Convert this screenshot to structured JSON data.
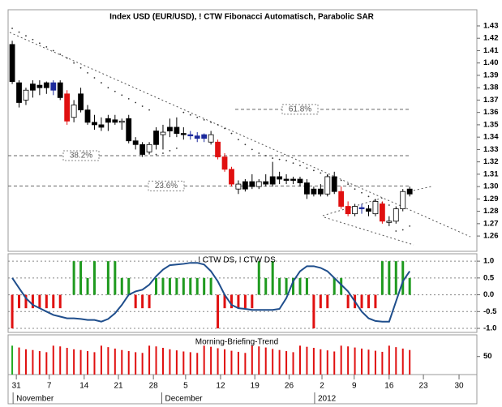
{
  "chart_data": [
    {
      "type": "candlestick",
      "title": "Index USD (EUR/USD), ! CTW Fibonacci Automatisch, Parabolic SAR",
      "open": [
        1.415,
        1.384,
        1.37,
        1.378,
        1.382,
        1.38,
        1.378,
        1.384,
        1.375,
        1.356,
        1.375,
        1.362,
        1.352,
        1.35,
        1.352,
        1.354,
        1.352,
        1.355,
        1.337,
        1.334,
        1.328,
        1.334,
        1.342,
        1.345,
        1.348,
        1.343,
        1.342,
        1.341,
        1.339,
        1.342,
        1.336,
        1.324,
        1.314,
        1.302,
        1.298,
        1.304,
        1.3,
        1.304,
        1.302,
        1.308,
        1.306,
        1.305,
        1.306,
        1.303,
        1.294,
        1.298,
        1.294,
        1.308,
        1.296,
        1.284,
        1.278,
        1.282,
        1.282,
        1.278,
        1.286,
        1.272,
        1.272,
        1.282,
        1.298
      ],
      "high": [
        1.418,
        1.386,
        1.38,
        1.386,
        1.386,
        1.385,
        1.386,
        1.386,
        1.378,
        1.37,
        1.38,
        1.366,
        1.358,
        1.356,
        1.358,
        1.358,
        1.355,
        1.358,
        1.34,
        1.336,
        1.336,
        1.348,
        1.35,
        1.355,
        1.356,
        1.348,
        1.345,
        1.344,
        1.343,
        1.345,
        1.338,
        1.327,
        1.316,
        1.305,
        1.306,
        1.31,
        1.306,
        1.31,
        1.32,
        1.312,
        1.31,
        1.308,
        1.308,
        1.306,
        1.3,
        1.302,
        1.31,
        1.312,
        1.3,
        1.288,
        1.286,
        1.286,
        1.285,
        1.29,
        1.288,
        1.276,
        1.284,
        1.298,
        1.3
      ],
      "low": [
        1.383,
        1.364,
        1.366,
        1.372,
        1.374,
        1.375,
        1.374,
        1.37,
        1.35,
        1.352,
        1.36,
        1.35,
        1.346,
        1.345,
        1.345,
        1.35,
        1.346,
        1.335,
        1.33,
        1.324,
        1.326,
        1.33,
        1.33,
        1.34,
        1.34,
        1.338,
        1.338,
        1.336,
        1.336,
        1.334,
        1.322,
        1.312,
        1.3,
        1.294,
        1.296,
        1.298,
        1.298,
        1.3,
        1.3,
        1.302,
        1.302,
        1.302,
        1.3,
        1.29,
        1.292,
        1.292,
        1.292,
        1.294,
        1.282,
        1.276,
        1.276,
        1.278,
        1.276,
        1.276,
        1.27,
        1.268,
        1.27,
        1.28,
        1.292
      ],
      "close": [
        1.385,
        1.368,
        1.378,
        1.383,
        1.38,
        1.384,
        1.384,
        1.372,
        1.353,
        1.366,
        1.362,
        1.352,
        1.35,
        1.348,
        1.355,
        1.352,
        1.353,
        1.337,
        1.334,
        1.326,
        1.334,
        1.345,
        1.344,
        1.348,
        1.343,
        1.342,
        1.341,
        1.339,
        1.342,
        1.336,
        1.324,
        1.314,
        1.302,
        1.298,
        1.304,
        1.3,
        1.304,
        1.302,
        1.308,
        1.306,
        1.305,
        1.306,
        1.303,
        1.294,
        1.298,
        1.294,
        1.308,
        1.296,
        1.284,
        1.278,
        1.284,
        1.283,
        1.28,
        1.288,
        1.272,
        1.271,
        1.282,
        1.296,
        1.294
      ],
      "candle_colors": [
        "k",
        "k",
        "w",
        "k",
        "k",
        "k",
        "b",
        "k",
        "r",
        "w",
        "k",
        "k",
        "k",
        "k",
        "k",
        "k",
        "w",
        "k",
        "k",
        "k",
        "w",
        "k",
        "w",
        "k",
        "k",
        "k",
        "b",
        "b",
        "b",
        "w",
        "r",
        "r",
        "r",
        "w",
        "k",
        "k",
        "w",
        "k",
        "k",
        "k",
        "k",
        "k",
        "k",
        "k",
        "k",
        "k",
        "w",
        "k",
        "r",
        "r",
        "w",
        "b",
        "k",
        "w",
        "r",
        "w",
        "w",
        "w",
        "k"
      ],
      "palette": {
        "k": "#000000",
        "w": "#ffffff",
        "r": "#e01010",
        "b": "#1c2a9c"
      },
      "sar": {
        "name": "Parabolic SAR",
        "color": "#333333",
        "values": [
          1.428,
          1.425,
          1.422,
          1.419,
          1.416,
          1.413,
          1.41,
          1.407,
          1.404,
          1.4,
          1.396,
          1.392,
          1.388,
          1.384,
          1.38,
          1.377,
          1.374,
          1.371,
          1.368,
          1.365,
          1.362,
          1.326,
          1.327,
          1.329,
          1.331,
          1.36,
          1.358,
          1.356,
          1.354,
          1.352,
          1.35,
          1.347,
          1.343,
          1.338,
          1.334,
          1.33,
          1.327,
          1.325,
          1.323,
          1.322,
          1.321,
          1.319,
          1.317,
          1.315,
          1.313,
          1.311,
          1.309,
          1.307,
          1.305,
          1.302,
          1.298,
          1.295,
          1.292,
          1.289,
          1.287,
          1.285,
          1.264,
          1.265,
          1.268
        ]
      },
      "fibonacci": [
        {
          "label": "61.8%",
          "value": 1.3625
        },
        {
          "label": "38.2%",
          "value": 1.325
        },
        {
          "label": "23.6%",
          "value": 1.3005
        }
      ],
      "ylim": [
        1.2476,
        1.4431
      ],
      "yticks": [
        1.43,
        1.42,
        1.41,
        {
          "value": 1.4,
          "label": "1.40"
        },
        1.39,
        1.38,
        1.37,
        1.36,
        1.35,
        1.34,
        1.33,
        1.32,
        1.31,
        {
          "value": 1.3,
          "label": "1.30"
        },
        1.29,
        1.28,
        1.27,
        1.26
      ],
      "xlim": [
        -0.6,
        67.8
      ],
      "xticks": [
        {
          "value": 0.6,
          "label": "31"
        },
        {
          "value": 5.4,
          "label": "7"
        },
        {
          "value": 10.5,
          "label": "14"
        },
        {
          "value": 15.5,
          "label": "21"
        },
        {
          "value": 20.6,
          "label": "28"
        },
        {
          "value": 25.3,
          "label": "5"
        },
        {
          "value": 30.4,
          "label": "12"
        },
        {
          "value": 35.4,
          "label": "19"
        },
        {
          "value": 40.4,
          "label": "26"
        },
        {
          "value": 45.2,
          "label": "2"
        },
        {
          "value": 49.9,
          "label": "9"
        },
        {
          "value": 55.0,
          "label": "16"
        },
        {
          "value": 60.0,
          "label": "23"
        },
        {
          "value": 65.2,
          "label": "30"
        }
      ],
      "months": [
        {
          "value": 0.6,
          "label": "November"
        },
        {
          "value": 22.3,
          "label": "December"
        },
        {
          "value": 44.6,
          "label": "2012"
        }
      ]
    },
    {
      "type": "oscillator",
      "title": "! CTW DS, ! CTW DS",
      "histogram": [
        -1,
        -0.4,
        -0.4,
        -0.4,
        -0.4,
        -0.4,
        -0.4,
        -0.4,
        0,
        1,
        1,
        0.5,
        1,
        0,
        1,
        1,
        0.5,
        0.5,
        -0.4,
        -0.4,
        -0.4,
        0.5,
        0.5,
        0.5,
        0.5,
        0.5,
        0.5,
        0.5,
        0.5,
        0.5,
        -1,
        -0.4,
        -0.4,
        -0.4,
        -0.4,
        -0.4,
        1,
        0.5,
        1,
        0.5,
        0.5,
        0.5,
        0.5,
        0.5,
        -1,
        -0.4,
        -0.4,
        0.5,
        0.5,
        -0.4,
        -0.4,
        -0.4,
        -0.4,
        -0.4,
        1,
        1,
        1,
        1,
        0.5
      ],
      "up_color": "#1f9a1f",
      "down_color": "#e01010",
      "line": {
        "color": "#1f4e8c",
        "values": [
          0.5,
          0.2,
          -0.1,
          -0.3,
          -0.4,
          -0.5,
          -0.6,
          -0.65,
          -0.7,
          -0.7,
          -0.72,
          -0.75,
          -0.75,
          -0.8,
          -0.72,
          -0.55,
          -0.3,
          0.0,
          0.1,
          0.15,
          0.3,
          0.55,
          0.75,
          0.88,
          0.9,
          0.92,
          0.95,
          0.95,
          0.9,
          0.7,
          0.4,
          0.0,
          -0.3,
          -0.4,
          -0.42,
          -0.45,
          -0.45,
          -0.45,
          -0.45,
          -0.42,
          -0.1,
          0.4,
          0.7,
          0.85,
          0.85,
          0.8,
          0.7,
          0.5,
          0.3,
          0.1,
          -0.2,
          -0.5,
          -0.7,
          -0.78,
          -0.8,
          -0.8,
          -0.2,
          0.4,
          0.7
        ]
      },
      "ylim": [
        -1.12,
        1.22
      ],
      "yticks": [
        {
          "value": 1.0,
          "label": "1.0"
        },
        0.5,
        {
          "value": 0.0,
          "label": "0.0"
        },
        -0.5,
        {
          "value": -1.0,
          "label": "-1.0"
        }
      ]
    },
    {
      "type": "bar",
      "title": "Morning-Briefing-Trend",
      "values": [
        80,
        75,
        70,
        68,
        65,
        62,
        80,
        78,
        74,
        70,
        68,
        65,
        62,
        80,
        76,
        72,
        68,
        65,
        62,
        60,
        80,
        78,
        74,
        70,
        67,
        64,
        62,
        60,
        80,
        77,
        73,
        70,
        66,
        63,
        60,
        80,
        78,
        75,
        71,
        68,
        65,
        62,
        80,
        77,
        74,
        70,
        67,
        64,
        80,
        78,
        75,
        72,
        69,
        66,
        63,
        80,
        76,
        72,
        68
      ],
      "color": "#e01010",
      "first_color": "#22aa22",
      "ylim": [
        0,
        110
      ],
      "yticks": [
        50
      ]
    }
  ]
}
